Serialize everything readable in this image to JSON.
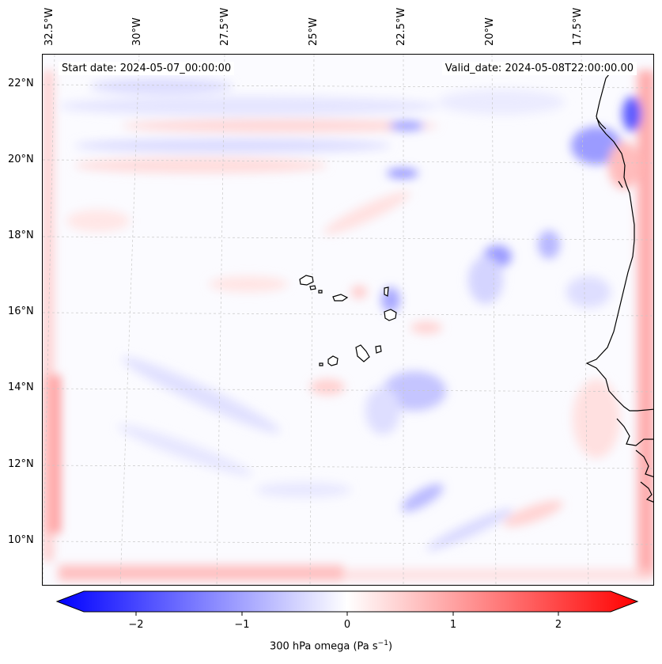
{
  "info": {
    "start_date": "Start date: 2024-05-07_00:00:00",
    "valid_date": "Valid_date: 2024-05-08T22:00:00.00"
  },
  "lon_labels": [
    "32.5°W",
    "30°W",
    "27.5°W",
    "25°W",
    "22.5°W",
    "20°W",
    "17.5°W"
  ],
  "lat_labels": [
    "22°N",
    "20°N",
    "18°N",
    "16°N",
    "14°N",
    "12°N",
    "10°N"
  ],
  "colorbar": {
    "ticks": [
      "−2",
      "−1",
      "0",
      "1",
      "2"
    ],
    "range": [
      -2.6,
      2.6
    ],
    "label": "300 hPa omega (Pa s",
    "label_sup": "−1",
    "label_end": ")",
    "colors": {
      "low": "#0000ff",
      "mid": "#ffffff",
      "high": "#ff0000"
    }
  },
  "map": {
    "lon_range": [
      -32.75,
      -15.25
    ],
    "lat_range": [
      8.85,
      22.75
    ],
    "coastline_color": "#000000",
    "gridline_color": "#c8c8c8"
  }
}
